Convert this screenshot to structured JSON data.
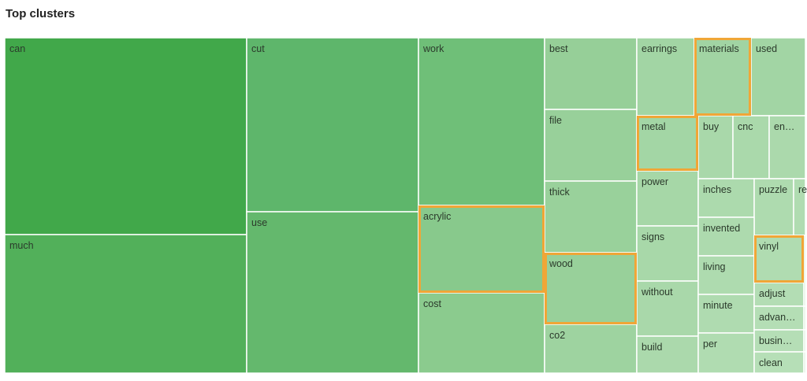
{
  "title": "Top clusters",
  "colors": {
    "tile_border": "#ffffff",
    "highlight": "#f0a637",
    "label": "#2b3a2b"
  },
  "chart_data": {
    "type": "treemap",
    "title": "Top clusters",
    "tiles": [
      {
        "label": "can",
        "color": "#41a84a"
      },
      {
        "label": "much",
        "color": "#52b05a"
      },
      {
        "label": "cut",
        "color": "#5eb66b"
      },
      {
        "label": "use",
        "color": "#64b86d"
      },
      {
        "label": "work",
        "color": "#6fbf78"
      },
      {
        "label": "acrylic",
        "color": "#88c98c",
        "highlighted": true
      },
      {
        "label": "cost",
        "color": "#8bcb8e"
      },
      {
        "label": "best",
        "color": "#96cf98"
      },
      {
        "label": "file",
        "color": "#98d09a"
      },
      {
        "label": "thick",
        "color": "#99d19b"
      },
      {
        "label": "wood",
        "color": "#98d09a",
        "highlighted": true
      },
      {
        "label": "co2",
        "color": "#9ed3a0"
      },
      {
        "label": "earrings",
        "color": "#a2d5a4"
      },
      {
        "label": "materials",
        "color": "#a1d4a3",
        "highlighted": true
      },
      {
        "label": "used",
        "color": "#a2d5a4"
      },
      {
        "label": "metal",
        "color": "#a3d6a5",
        "highlighted": true
      },
      {
        "label": "buy",
        "color": "#a9d8aa"
      },
      {
        "label": "cnc",
        "color": "#aad9ab"
      },
      {
        "label": "en…",
        "color": "#abd9ac"
      },
      {
        "label": "power",
        "color": "#a6d7a7"
      },
      {
        "label": "signs",
        "color": "#a8d8a9"
      },
      {
        "label": "without",
        "color": "#a9d8aa"
      },
      {
        "label": "build",
        "color": "#abd9ac"
      },
      {
        "label": "inches",
        "color": "#acdaad"
      },
      {
        "label": "puzzle",
        "color": "#aedbaf"
      },
      {
        "label": "re",
        "color": "#b0dcb1"
      },
      {
        "label": "invented",
        "color": "#adda ae"
      },
      {
        "label": "living",
        "color": "#aedbaf"
      },
      {
        "label": "minute",
        "color": "#afdbb0"
      },
      {
        "label": "per",
        "color": "#b0dcb1"
      },
      {
        "label": "vinyl",
        "color": "#b0dcb1",
        "highlighted": true
      },
      {
        "label": "adjust",
        "color": "#b3ddb4"
      },
      {
        "label": "advan…",
        "color": "#b4deb5"
      },
      {
        "label": "busin…",
        "color": "#b5deb6"
      },
      {
        "label": "clean",
        "color": "#b6dfb7"
      },
      {
        "label": "",
        "color": "#b7dfb8"
      },
      {
        "label": "",
        "color": "#b7dfb8"
      },
      {
        "label": "",
        "color": "#b8e0b9"
      },
      {
        "label": "",
        "color": "#b8e0b9"
      }
    ]
  }
}
